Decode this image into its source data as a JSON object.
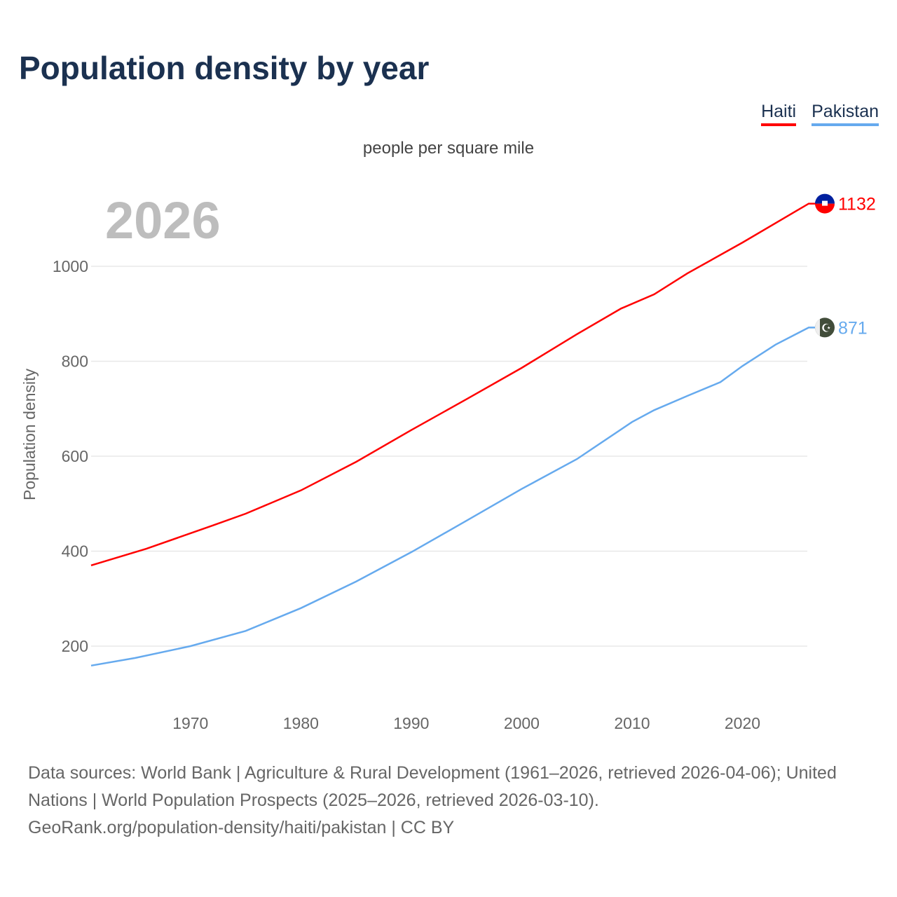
{
  "title": "Population density by year",
  "chart_data": {
    "type": "line",
    "title": "Population density by year",
    "subtitle": "people per square mile",
    "ylabel": "Population density",
    "xlabel": "",
    "year_label": "2026",
    "xlim": [
      1961,
      2026
    ],
    "ylim": [
      70,
      1140
    ],
    "yticks": [
      200,
      400,
      600,
      800,
      1000
    ],
    "xticks": [
      1970,
      1980,
      1990,
      2000,
      2010,
      2020
    ],
    "grid": true,
    "legend_position": "top-right",
    "series": [
      {
        "name": "Haiti",
        "color": "#ff0000",
        "end_label": "1132",
        "x": [
          1961,
          1966,
          1972,
          1975,
          1980,
          1985,
          1990,
          1995,
          2000,
          2005,
          2009,
          2012,
          2015,
          2020,
          2026
        ],
        "y": [
          370,
          405,
          454,
          479,
          528,
          588,
          655,
          720,
          786,
          857,
          911,
          941,
          985,
          1050,
          1132
        ]
      },
      {
        "name": "Pakistan",
        "color": "#66aaee",
        "end_label": "871",
        "x": [
          1961,
          1965,
          1970,
          1975,
          1980,
          1985,
          1990,
          1995,
          2000,
          2005,
          2010,
          2012,
          2015,
          2018,
          2020,
          2023,
          2026
        ],
        "y": [
          159,
          175,
          200,
          232,
          280,
          336,
          398,
          464,
          531,
          594,
          672,
          697,
          727,
          756,
          790,
          835,
          871
        ]
      }
    ]
  },
  "footer": {
    "line1": "Data sources: World Bank | Agriculture & Rural Development (1961–2026, retrieved 2026-04-06); United Nations | World Population Prospects (2025–2026, retrieved 2026-03-10).",
    "line2": "GeoRank.org/population-density/haiti/pakistan | CC BY"
  }
}
